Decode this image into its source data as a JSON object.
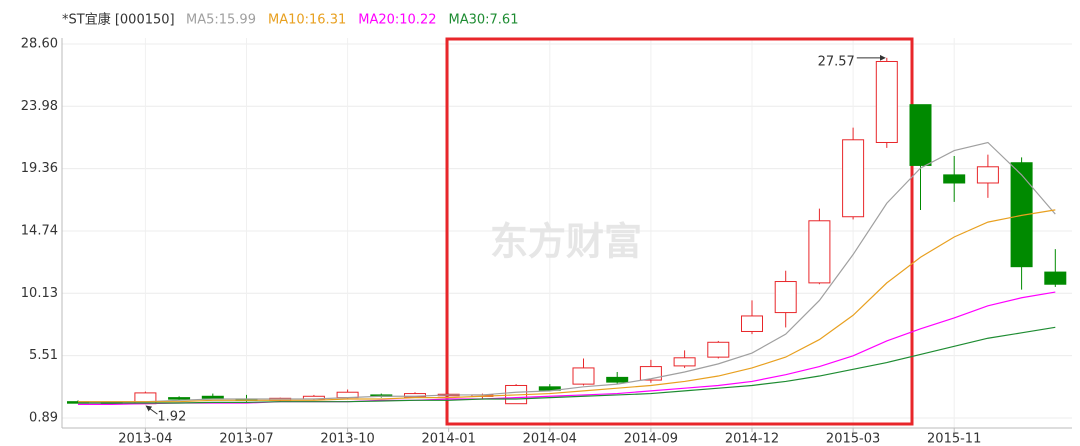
{
  "chart_data": {
    "type": "candlestick",
    "title": "*ST宜康 [000150]",
    "watermark": "东方财富",
    "categories": [
      null,
      null,
      "2013-04",
      null,
      null,
      "2013-07",
      null,
      null,
      "2013-10",
      null,
      null,
      "2014-01",
      null,
      null,
      "2014-04",
      null,
      null,
      "2014-09",
      null,
      null,
      "2014-12",
      null,
      null,
      "2015-03",
      null,
      null,
      "2015-11",
      null,
      null,
      null
    ],
    "open": [
      2.1,
      2.05,
      1.95,
      2.4,
      2.5,
      2.3,
      2.2,
      2.3,
      2.4,
      2.6,
      2.45,
      2.6,
      2.5,
      1.95,
      3.2,
      3.4,
      3.9,
      3.7,
      4.75,
      5.4,
      7.3,
      8.7,
      10.9,
      15.8,
      21.3,
      24.1,
      18.9,
      18.3,
      19.8,
      11.7
    ],
    "high": [
      2.2,
      2.1,
      2.85,
      2.5,
      2.7,
      2.6,
      2.4,
      2.6,
      3.0,
      2.7,
      2.8,
      2.7,
      2.7,
      3.4,
      3.4,
      5.3,
      4.3,
      5.2,
      5.9,
      6.6,
      9.6,
      11.8,
      16.4,
      22.4,
      27.57,
      24.1,
      20.3,
      20.4,
      20.2,
      13.4
    ],
    "low": [
      2.0,
      1.95,
      1.92,
      2.2,
      2.3,
      2.1,
      2.1,
      2.2,
      2.3,
      2.4,
      2.4,
      2.5,
      2.3,
      1.95,
      3.0,
      3.3,
      3.4,
      3.5,
      4.6,
      5.3,
      7.1,
      7.6,
      10.8,
      15.6,
      20.9,
      16.3,
      16.9,
      17.2,
      10.4,
      10.6
    ],
    "close": [
      2.05,
      1.98,
      2.75,
      2.3,
      2.35,
      2.2,
      2.35,
      2.5,
      2.8,
      2.5,
      2.7,
      2.65,
      2.6,
      3.3,
      2.95,
      4.6,
      3.55,
      4.7,
      5.35,
      6.5,
      8.45,
      11.0,
      15.5,
      21.5,
      27.3,
      19.6,
      18.3,
      19.5,
      12.1,
      10.8
    ],
    "up_color": "#e8262a",
    "down_color": "#008a00",
    "high_mark": 27.57,
    "low_mark": 1.92,
    "series": [
      {
        "name": "MA5:15.99",
        "color": "#a0a0a0",
        "values": [
          2.1,
          2.1,
          2.1,
          2.2,
          2.3,
          2.3,
          2.3,
          2.3,
          2.4,
          2.5,
          2.5,
          2.6,
          2.6,
          2.8,
          2.9,
          3.2,
          3.4,
          3.8,
          4.3,
          4.9,
          5.7,
          7.1,
          9.6,
          13.0,
          16.8,
          19.4,
          20.7,
          21.3,
          18.9,
          15.99
        ]
      },
      {
        "name": "MA10:16.31",
        "color": "#e8a020",
        "values": [
          2.1,
          2.1,
          2.1,
          2.1,
          2.2,
          2.2,
          2.2,
          2.2,
          2.3,
          2.3,
          2.4,
          2.4,
          2.5,
          2.6,
          2.7,
          2.9,
          3.1,
          3.3,
          3.6,
          4.0,
          4.6,
          5.4,
          6.7,
          8.5,
          10.9,
          12.8,
          14.3,
          15.4,
          15.9,
          16.31
        ]
      },
      {
        "name": "MA20:10.22",
        "color": "#ff00ff",
        "values": [
          1.9,
          1.9,
          1.95,
          2.0,
          2.0,
          2.0,
          2.1,
          2.1,
          2.1,
          2.2,
          2.2,
          2.3,
          2.3,
          2.4,
          2.5,
          2.6,
          2.7,
          2.9,
          3.1,
          3.3,
          3.6,
          4.1,
          4.7,
          5.5,
          6.6,
          7.5,
          8.3,
          9.2,
          9.8,
          10.22
        ]
      },
      {
        "name": "MA30:7.61",
        "color": "#1e8c32",
        "values": [
          2.0,
          2.0,
          2.0,
          2.0,
          2.05,
          2.05,
          2.1,
          2.1,
          2.1,
          2.15,
          2.2,
          2.2,
          2.3,
          2.3,
          2.4,
          2.5,
          2.6,
          2.7,
          2.9,
          3.1,
          3.3,
          3.6,
          4.0,
          4.5,
          5.0,
          5.6,
          6.2,
          6.8,
          7.2,
          7.61
        ]
      }
    ],
    "ylim": [
      0.15,
      29.04
    ],
    "yticks": [
      0.89,
      5.51,
      10.13,
      14.74,
      19.36,
      23.98,
      {
        "value": 28.6,
        "label": "28.60"
      }
    ],
    "grid": true
  }
}
